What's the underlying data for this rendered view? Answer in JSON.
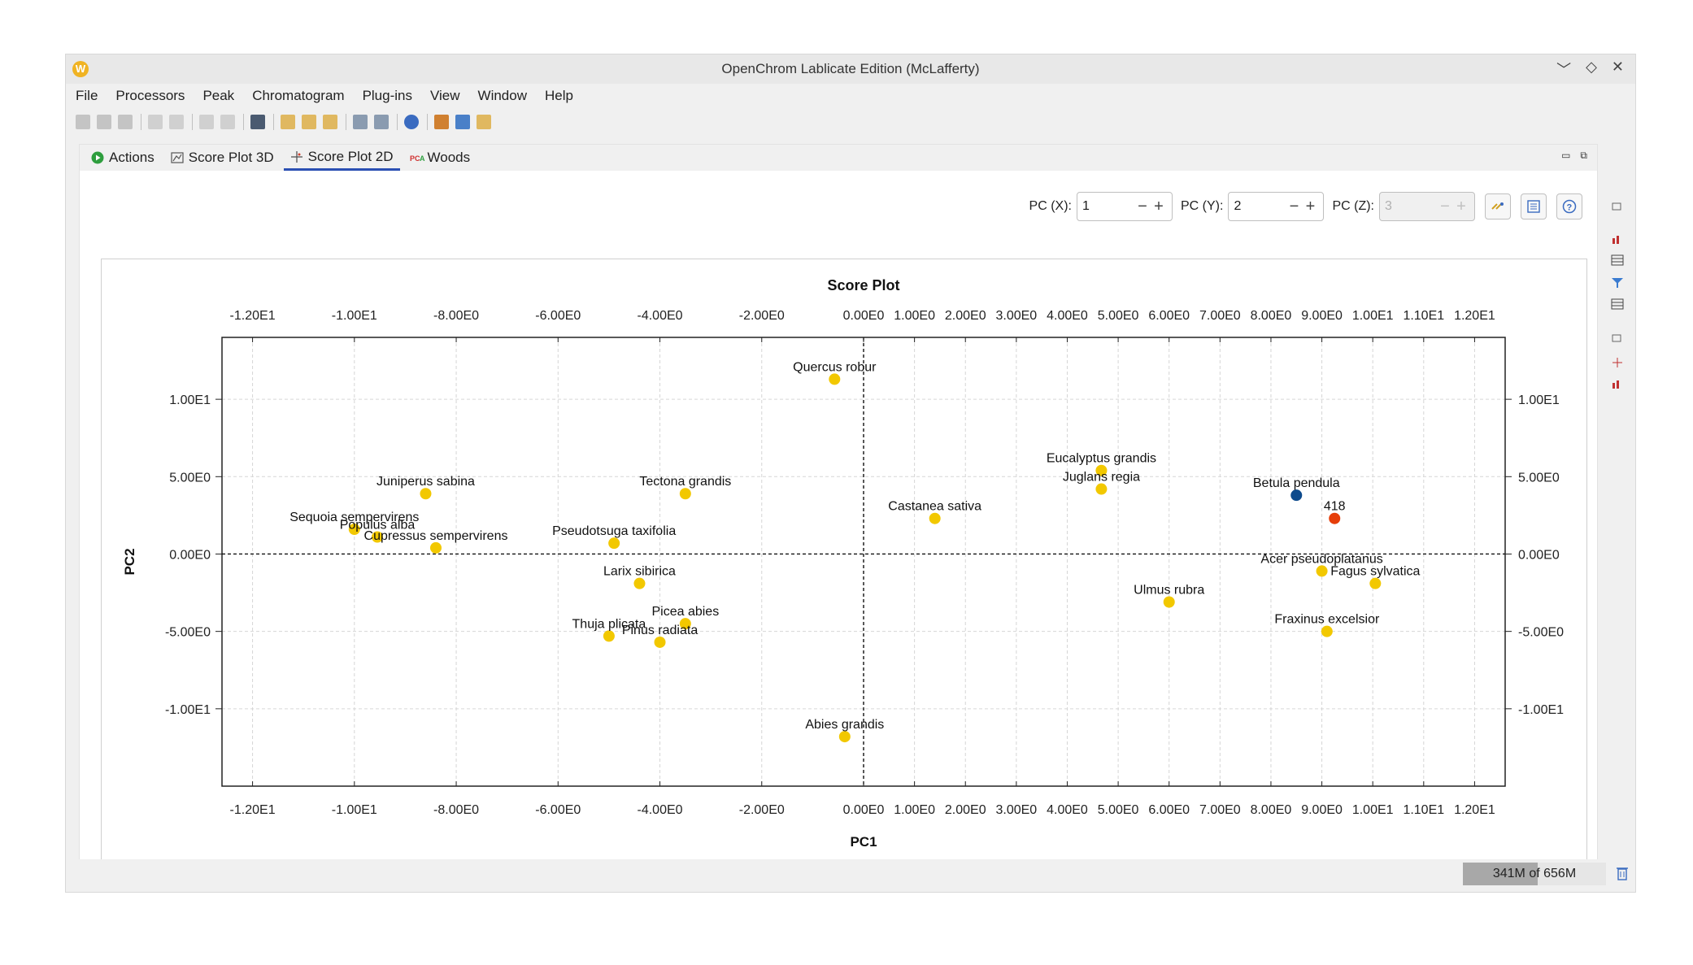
{
  "window": {
    "title": "OpenChrom Lablicate Edition (McLafferty)",
    "controls": [
      "﹀",
      "◇",
      "✕"
    ]
  },
  "menu": [
    "File",
    "Processors",
    "Peak",
    "Chromatogram",
    "Plug-ins",
    "View",
    "Window",
    "Help"
  ],
  "tabs": [
    {
      "label": "Actions",
      "icon": "play-icon",
      "active": false
    },
    {
      "label": "Score Plot 3D",
      "icon": "plot-3d-icon",
      "active": false
    },
    {
      "label": "Score Plot 2D",
      "icon": "crosshair-icon",
      "active": true
    },
    {
      "label": "Woods",
      "icon": "pca-icon",
      "active": false
    }
  ],
  "pc_controls": {
    "x_label": "PC (X):",
    "x_value": "1",
    "y_label": "PC (Y):",
    "y_value": "2",
    "z_label": "PC (Z):",
    "z_value": "3"
  },
  "status": {
    "memory": "341M of 656M",
    "memory_used_fraction": 0.52
  },
  "chart_data": {
    "type": "scatter",
    "title": "Score Plot",
    "xlabel": "PC1",
    "ylabel": "PC2",
    "xlim": [
      -12.6,
      12.6
    ],
    "ylim": [
      -15,
      14
    ],
    "grid": true,
    "xticks": [
      {
        "v": -12,
        "label": "-1.20E1"
      },
      {
        "v": -10,
        "label": "-1.00E1"
      },
      {
        "v": -8,
        "label": "-8.00E0"
      },
      {
        "v": -6,
        "label": "-6.00E0"
      },
      {
        "v": -4,
        "label": "-4.00E0"
      },
      {
        "v": -2,
        "label": "-2.00E0"
      },
      {
        "v": 0,
        "label": "0.00E0"
      },
      {
        "v": 1,
        "label": "1.00E0"
      },
      {
        "v": 2,
        "label": "2.00E0"
      },
      {
        "v": 3,
        "label": "3.00E0"
      },
      {
        "v": 4,
        "label": "4.00E0"
      },
      {
        "v": 5,
        "label": "5.00E0"
      },
      {
        "v": 6,
        "label": "6.00E0"
      },
      {
        "v": 7,
        "label": "7.00E0"
      },
      {
        "v": 8,
        "label": "8.00E0"
      },
      {
        "v": 9,
        "label": "9.00E0"
      },
      {
        "v": 10,
        "label": "1.00E1"
      },
      {
        "v": 11,
        "label": "1.10E1"
      },
      {
        "v": 12,
        "label": "1.20E1"
      }
    ],
    "yticks": [
      {
        "v": 10,
        "label": "1.00E1"
      },
      {
        "v": 5,
        "label": "5.00E0"
      },
      {
        "v": 0,
        "label": "0.00E0"
      },
      {
        "v": -5,
        "label": "-5.00E0"
      },
      {
        "v": -10,
        "label": "-1.00E1"
      }
    ],
    "points": [
      {
        "name": "Quercus robur",
        "x": -0.57,
        "y": 11.3,
        "color": "#f2c800"
      },
      {
        "name": "Eucalyptus grandis",
        "x": 4.67,
        "y": 5.4,
        "color": "#f2c800"
      },
      {
        "name": "Juglans regia",
        "x": 4.67,
        "y": 4.2,
        "color": "#f2c800"
      },
      {
        "name": "Betula pendula",
        "x": 8.5,
        "y": 3.8,
        "color": "#0d4a8c"
      },
      {
        "name": "418",
        "x": 9.25,
        "y": 2.3,
        "color": "#e63e0a"
      },
      {
        "name": "Juniperus sabina",
        "x": -8.6,
        "y": 3.9,
        "color": "#f2c800"
      },
      {
        "name": "Tectona grandis",
        "x": -3.5,
        "y": 3.9,
        "color": "#f2c800"
      },
      {
        "name": "Castanea sativa",
        "x": 1.4,
        "y": 2.3,
        "color": "#f2c800"
      },
      {
        "name": "Sequoia sempervirens",
        "x": -10.0,
        "y": 1.6,
        "color": "#f2c800"
      },
      {
        "name": "Populus alba",
        "x": -9.55,
        "y": 1.1,
        "color": "#f2c800"
      },
      {
        "name": "Cupressus sempervirens",
        "x": -8.4,
        "y": 0.4,
        "color": "#f2c800"
      },
      {
        "name": "Pseudotsuga taxifolia",
        "x": -4.9,
        "y": 0.7,
        "color": "#f2c800"
      },
      {
        "name": "Acer pseudoplatanus",
        "x": 9.0,
        "y": -1.1,
        "color": "#f2c800"
      },
      {
        "name": "Fagus sylvatica",
        "x": 10.05,
        "y": -1.9,
        "color": "#f2c800"
      },
      {
        "name": "Larix sibirica",
        "x": -4.4,
        "y": -1.9,
        "color": "#f2c800"
      },
      {
        "name": "Ulmus rubra",
        "x": 6.0,
        "y": -3.1,
        "color": "#f2c800"
      },
      {
        "name": "Fraxinus excelsior",
        "x": 9.1,
        "y": -5.0,
        "color": "#f2c800"
      },
      {
        "name": "Picea abies",
        "x": -3.5,
        "y": -4.5,
        "color": "#f2c800"
      },
      {
        "name": "Thuja plicata",
        "x": -5.0,
        "y": -5.3,
        "color": "#f2c800"
      },
      {
        "name": "Pinus radiata",
        "x": -4.0,
        "y": -5.7,
        "color": "#f2c800"
      },
      {
        "name": "Abies grandis",
        "x": -0.37,
        "y": -11.8,
        "color": "#f2c800"
      }
    ]
  }
}
